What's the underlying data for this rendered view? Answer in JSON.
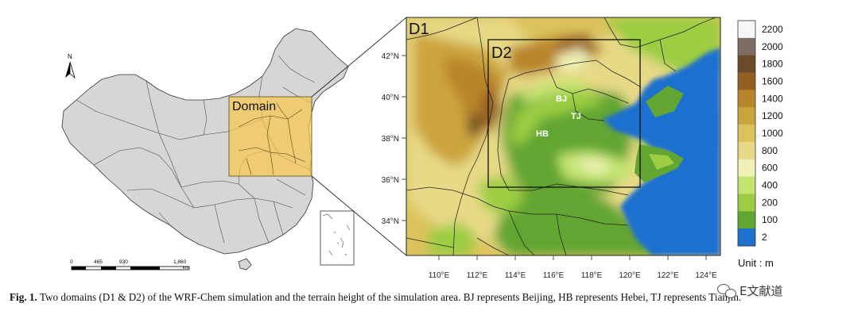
{
  "overview_map": {
    "north_arrow": {
      "label": "N"
    },
    "domain_label": "Domain",
    "scale_bar": {
      "ticks": [
        "0",
        "465",
        "930",
        "1,860"
      ],
      "unit": "km"
    }
  },
  "terrain_map": {
    "panel_labels": {
      "d1": "D1",
      "d2": "D2"
    },
    "city_labels": {
      "bj": "BJ",
      "tj": "TJ",
      "hb": "HB"
    },
    "lat_ticks": [
      "42°N",
      "40°N",
      "38°N",
      "36°N",
      "34°N"
    ],
    "lon_ticks": [
      "110°E",
      "112°E",
      "114°E",
      "116°E",
      "118°E",
      "120°E",
      "122°E",
      "124°E"
    ]
  },
  "colorbar": {
    "levels": [
      {
        "label": "2200",
        "color": "#f6f5f7"
      },
      {
        "label": "2000",
        "color": "#7d6d62"
      },
      {
        "label": "1800",
        "color": "#6a4a27"
      },
      {
        "label": "1600",
        "color": "#955f24"
      },
      {
        "label": "1400",
        "color": "#b9852c"
      },
      {
        "label": "1200",
        "color": "#cca43d"
      },
      {
        "label": "1000",
        "color": "#dbc25c"
      },
      {
        "label": "800",
        "color": "#e7d986"
      },
      {
        "label": "600",
        "color": "#eef0b6"
      },
      {
        "label": "400",
        "color": "#c3e46f"
      },
      {
        "label": "200",
        "color": "#9ccd42"
      },
      {
        "label": "100",
        "color": "#62a532"
      },
      {
        "label": "2",
        "color": "#1f6fcf"
      }
    ],
    "unit_label": "Unit : m"
  },
  "caption": {
    "label": "Fig. 1.",
    "text": "Two domains (D1 & D2) of the WRF-Chem simulation and the terrain height of the simulation area. BJ represents Beijing, HB represents Hebei, TJ represents Tianjin."
  },
  "watermark": {
    "text": "E文献道"
  }
}
